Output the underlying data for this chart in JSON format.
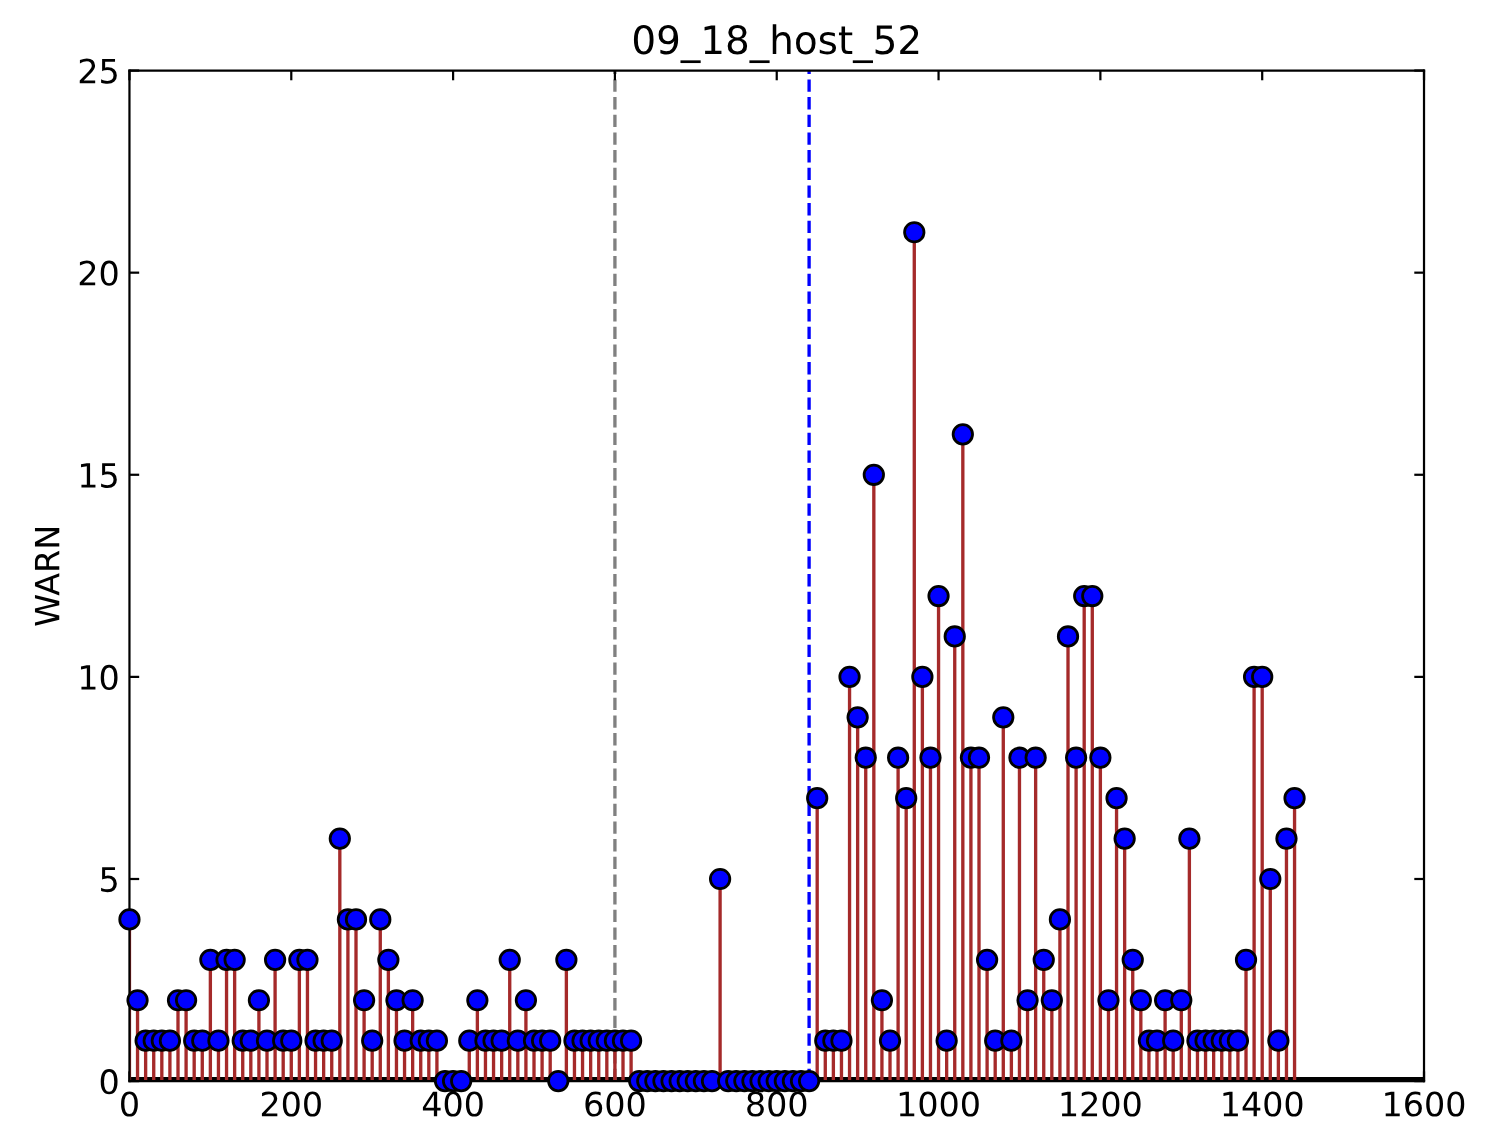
{
  "chart_data": {
    "type": "lollipop",
    "title": "09_18_host_52",
    "ylabel": "WARN",
    "marker": "circle",
    "x": [
      0,
      10,
      20,
      30,
      40,
      50,
      60,
      70,
      80,
      90,
      100,
      110,
      120,
      130,
      140,
      150,
      160,
      170,
      180,
      190,
      200,
      210,
      220,
      230,
      240,
      250,
      260,
      270,
      280,
      290,
      300,
      310,
      320,
      330,
      340,
      350,
      360,
      370,
      380,
      390,
      400,
      410,
      420,
      430,
      440,
      450,
      460,
      470,
      480,
      490,
      500,
      510,
      520,
      530,
      540,
      550,
      560,
      570,
      580,
      590,
      600,
      610,
      620,
      630,
      640,
      650,
      660,
      670,
      680,
      690,
      700,
      710,
      720,
      730,
      740,
      750,
      760,
      770,
      780,
      790,
      800,
      810,
      820,
      830,
      840,
      850,
      860,
      870,
      880,
      890,
      900,
      910,
      920,
      930,
      940,
      950,
      960,
      970,
      980,
      990,
      1000,
      1010,
      1020,
      1030,
      1040,
      1050,
      1060,
      1070,
      1080,
      1090,
      1100,
      1110,
      1120,
      1130,
      1140,
      1150,
      1160,
      1170,
      1180,
      1190,
      1200,
      1210,
      1220,
      1230,
      1240,
      1250,
      1260,
      1270,
      1280,
      1290,
      1300,
      1310,
      1320,
      1330,
      1340,
      1350,
      1360,
      1370,
      1380,
      1390,
      1400,
      1410,
      1420,
      1430,
      1440
    ],
    "series": [
      {
        "color": "#0000ff",
        "values": [
          4,
          2,
          1,
          1,
          1,
          1,
          2,
          2,
          1,
          1,
          3,
          1,
          3,
          3,
          1,
          1,
          2,
          1,
          3,
          1,
          1,
          3,
          3,
          1,
          1,
          1,
          6,
          4,
          4,
          2,
          1,
          4,
          3,
          2,
          1,
          2,
          1,
          1,
          1,
          0,
          0,
          0,
          1,
          2,
          1,
          1,
          1,
          3,
          1,
          2,
          1,
          1,
          1,
          0,
          3,
          1,
          1,
          1,
          1,
          1,
          1,
          1,
          1,
          0,
          0,
          0,
          0,
          0,
          0,
          0,
          0,
          0,
          0,
          5,
          0,
          0,
          0,
          0,
          0,
          0,
          0,
          0,
          0,
          0,
          0,
          7,
          1,
          1,
          1,
          10,
          9,
          8,
          15,
          2,
          1,
          8,
          7,
          21,
          10,
          8,
          12,
          1,
          11,
          16,
          8,
          8,
          3,
          1,
          9,
          1,
          8,
          2,
          8,
          3,
          2,
          4,
          11,
          8,
          12,
          12,
          8,
          2,
          7,
          6,
          3,
          2,
          1,
          1,
          2,
          1,
          2,
          6,
          1,
          1,
          1,
          1,
          1,
          1,
          3,
          10,
          10,
          5,
          1,
          6,
          7
        ]
      }
    ],
    "xlim": [
      0,
      1600
    ],
    "xticks": [
      0,
      200,
      400,
      600,
      800,
      1000,
      1200,
      1400,
      1600
    ],
    "ylim": [
      0,
      25
    ],
    "yticks": [
      0,
      5,
      10,
      15,
      20,
      25
    ],
    "grid": false,
    "ref_lines": [
      {
        "axis": "x",
        "value": 600,
        "color": "#808080",
        "line_style": "dashed"
      },
      {
        "axis": "x",
        "value": 840,
        "color": "#0000ff",
        "line_style": "dashed"
      }
    ]
  }
}
